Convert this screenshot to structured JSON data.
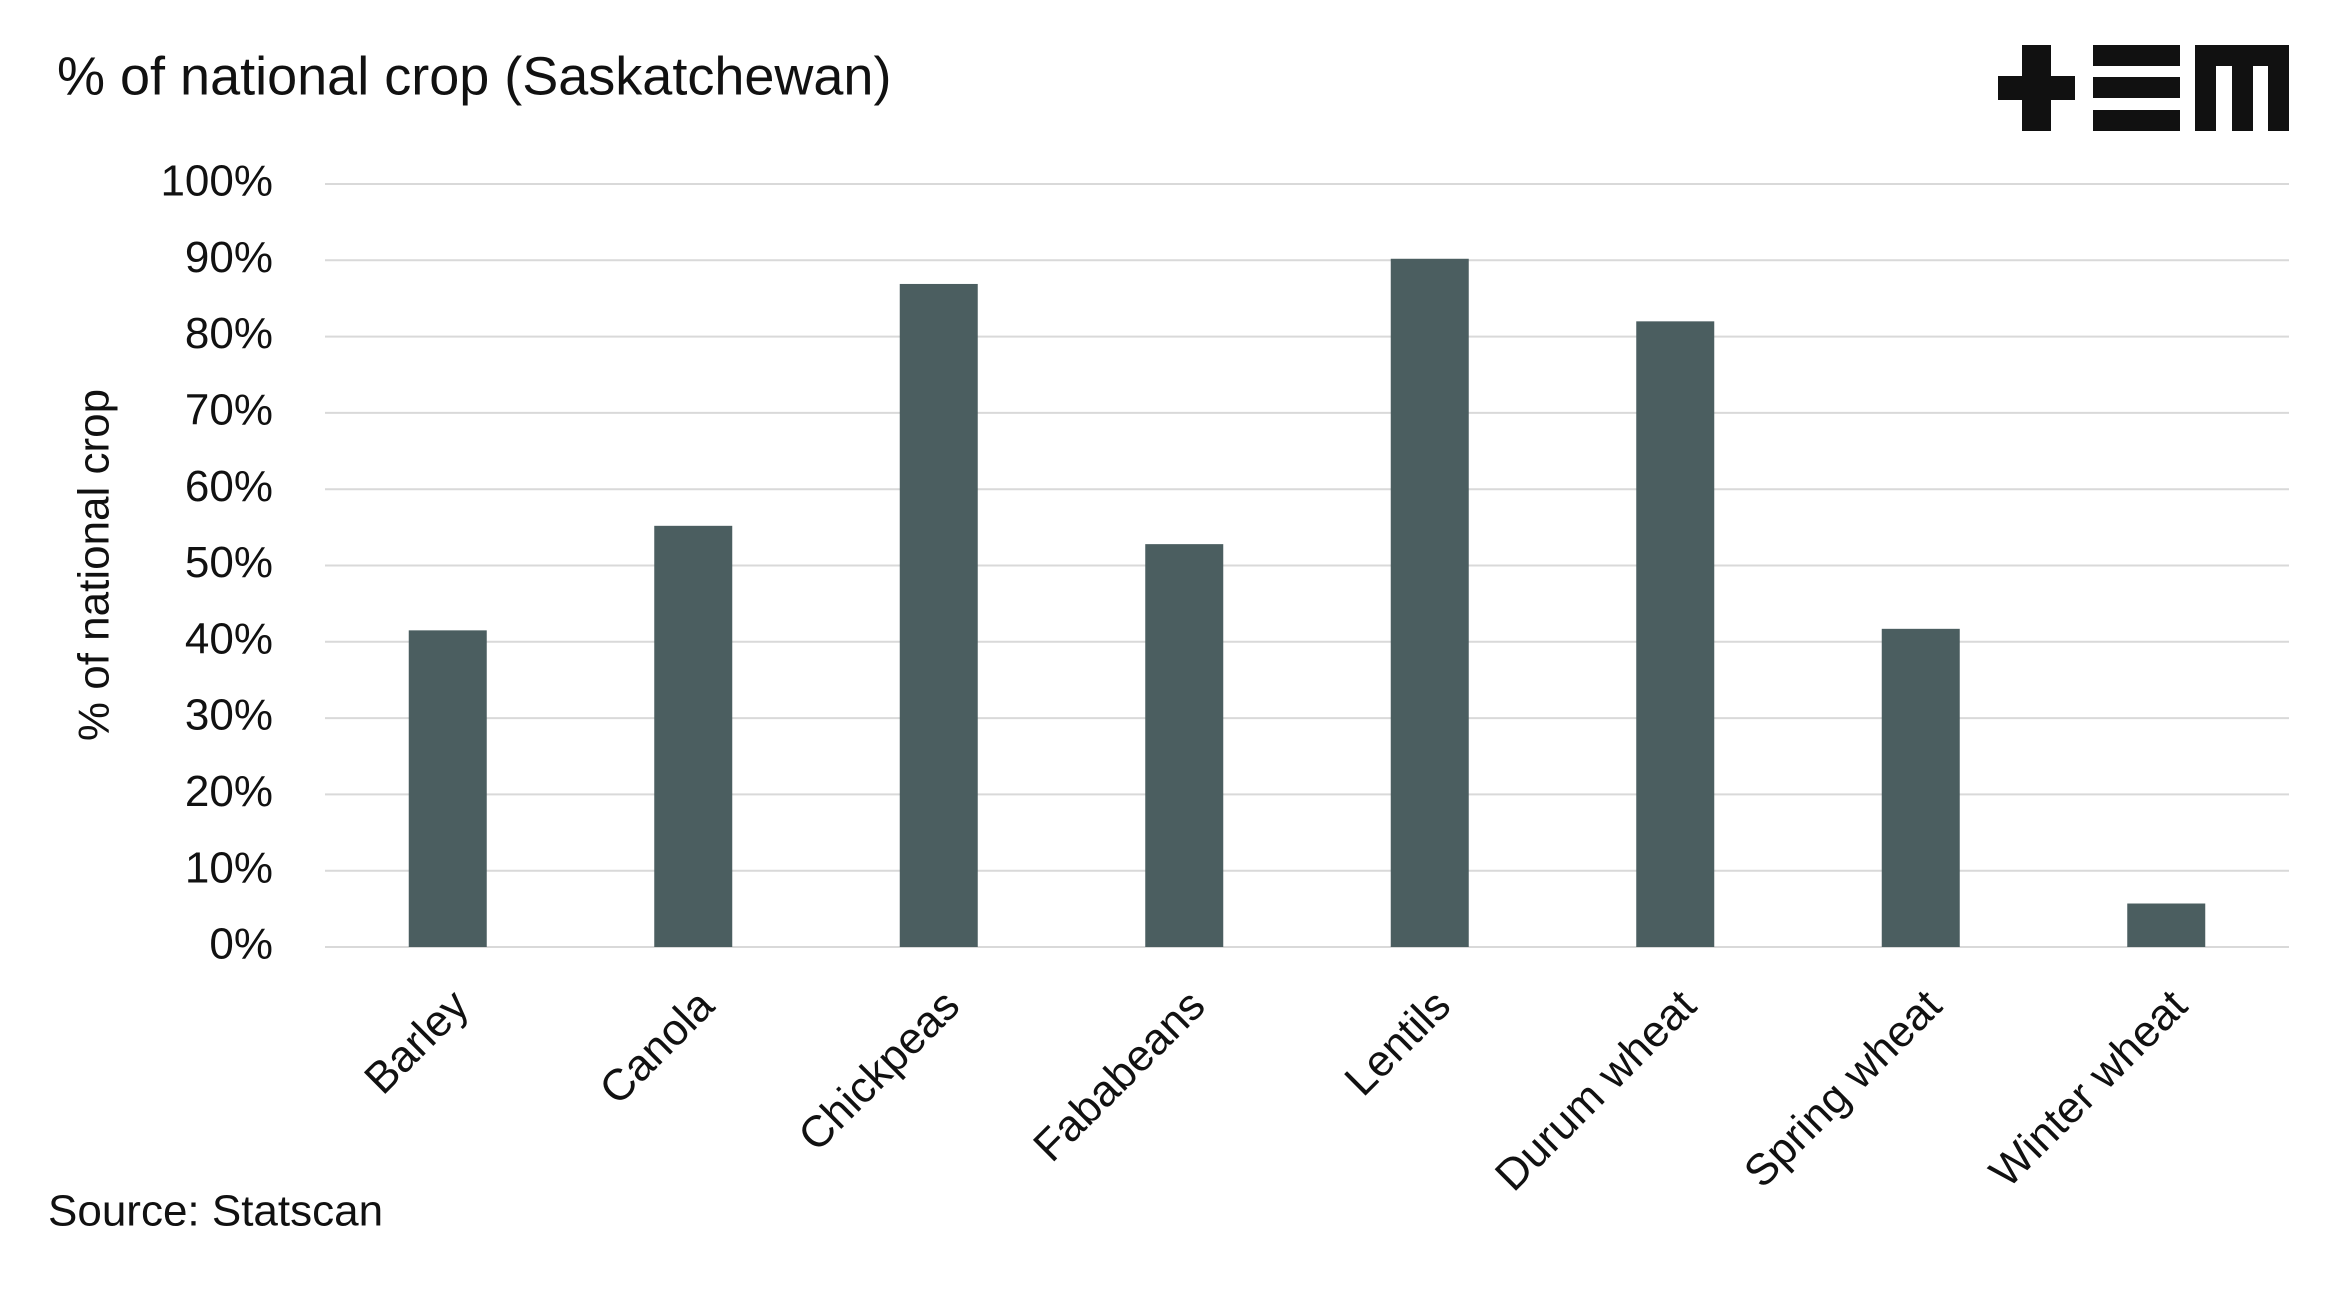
{
  "chart_data": {
    "type": "bar",
    "title": "% of national crop (Saskatchewan)",
    "y_label": "% of national crop",
    "source": "Source: Statscan",
    "categories": [
      "Barley",
      "Canola",
      "Chickpeas",
      "Fababeans",
      "Lentils",
      "Durum wheat",
      "Spring wheat",
      "Winter wheat"
    ],
    "values": [
      41.5,
      55.2,
      86.9,
      52.8,
      90.2,
      82.0,
      41.7,
      5.7
    ],
    "color": "#4b5e60",
    "ylim": [
      0,
      100
    ],
    "yticks": [
      {
        "value": 0,
        "label": "0%"
      },
      {
        "value": 10,
        "label": "10%"
      },
      {
        "value": 20,
        "label": "20%"
      },
      {
        "value": 30,
        "label": "30%"
      },
      {
        "value": 40,
        "label": "40%"
      },
      {
        "value": 50,
        "label": "50%"
      },
      {
        "value": 60,
        "label": "60%"
      },
      {
        "value": 70,
        "label": "70%"
      },
      {
        "value": 80,
        "label": "80%"
      },
      {
        "value": 90,
        "label": "90%"
      },
      {
        "value": 100,
        "label": "100%"
      }
    ],
    "grid": true
  }
}
